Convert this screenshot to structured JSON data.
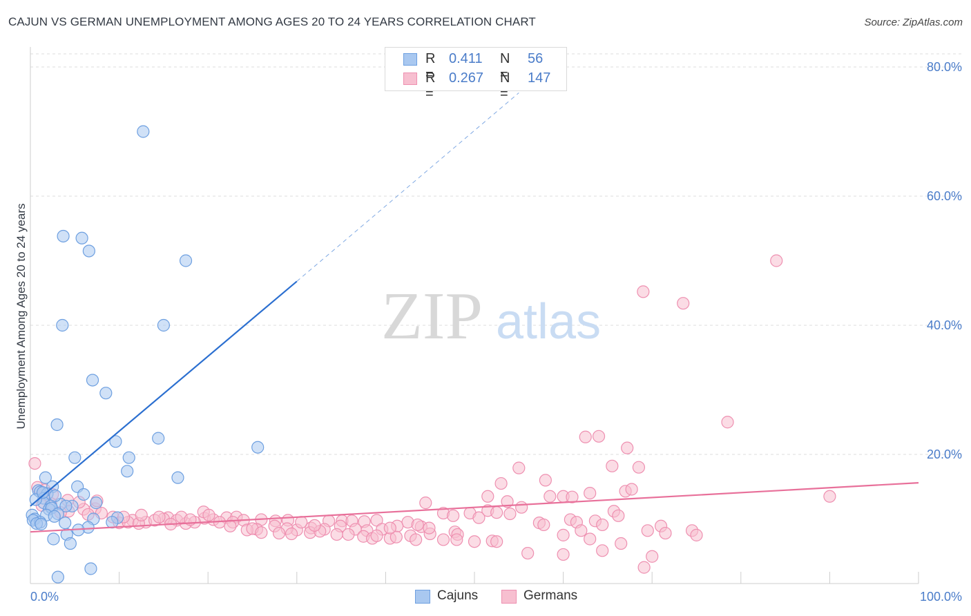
{
  "title": "CAJUN VS GERMAN UNEMPLOYMENT AMONG AGES 20 TO 24 YEARS CORRELATION CHART",
  "source": "Source: ZipAtlas.com",
  "watermark": {
    "zip": "ZIP",
    "atlas": "atlas"
  },
  "colors": {
    "cajun_fill": "#a9c8f0",
    "cajun_stroke": "#6d9fe0",
    "cajun_line": "#2b6fd0",
    "german_fill": "#f7bfd0",
    "german_stroke": "#ee8fb0",
    "german_line": "#e8709a",
    "tick_text": "#4a7cc9",
    "grid": "#dddddd"
  },
  "legend_top": [
    {
      "r_label": "R =",
      "r_value": "0.411",
      "n_label": "N =",
      "n_value": "56"
    },
    {
      "r_label": "R =",
      "r_value": "0.267",
      "n_label": "N =",
      "n_value": "147"
    }
  ],
  "legend_bottom": [
    "Cajuns",
    "Germans"
  ],
  "chart_data": {
    "type": "scatter",
    "title": "CAJUN VS GERMAN UNEMPLOYMENT AMONG AGES 20 TO 24 YEARS CORRELATION CHART",
    "xlabel": "",
    "ylabel": "Unemployment Among Ages 20 to 24 years",
    "xlim": [
      0,
      100
    ],
    "ylim": [
      0,
      82
    ],
    "x_tick_labels": [
      "0.0%",
      "100.0%"
    ],
    "y_ticks": [
      20,
      40,
      60,
      80
    ],
    "y_tick_labels": [
      "20.0%",
      "40.0%",
      "60.0%",
      "80.0%"
    ],
    "grid": true,
    "legend_position": "top-center",
    "series": [
      {
        "name": "Cajuns",
        "R": 0.411,
        "N": 56,
        "trend": {
          "x": [
            0,
            30
          ],
          "y": [
            12,
            46.8
          ],
          "dashed_to": [
            55,
            76
          ]
        },
        "points": [
          [
            12.7,
            70
          ],
          [
            3.7,
            53.8
          ],
          [
            5.8,
            53.5
          ],
          [
            6.6,
            51.5
          ],
          [
            17.5,
            50
          ],
          [
            3.6,
            40
          ],
          [
            15,
            40
          ],
          [
            7,
            31.5
          ],
          [
            8.5,
            29.5
          ],
          [
            3,
            24.6
          ],
          [
            14.4,
            22.5
          ],
          [
            9.6,
            22
          ],
          [
            25.6,
            21.1
          ],
          [
            5,
            19.5
          ],
          [
            11.1,
            19.5
          ],
          [
            10.9,
            17.4
          ],
          [
            16.6,
            16.4
          ],
          [
            1.7,
            16.4
          ],
          [
            2.5,
            15
          ],
          [
            5.3,
            15
          ],
          [
            0.9,
            14.4
          ],
          [
            1.1,
            14.2
          ],
          [
            1.9,
            13.9
          ],
          [
            6,
            13.8
          ],
          [
            1.5,
            13.2
          ],
          [
            7.4,
            12.5
          ],
          [
            1.5,
            12.5
          ],
          [
            3.4,
            12.3
          ],
          [
            4.7,
            12
          ],
          [
            4,
            12
          ],
          [
            2.3,
            12
          ],
          [
            2.1,
            11.5
          ],
          [
            2.4,
            11.7
          ],
          [
            3.1,
            10.8
          ],
          [
            1.8,
            10.6
          ],
          [
            2.7,
            10.4
          ],
          [
            0.2,
            10.6
          ],
          [
            7.1,
            10
          ],
          [
            9.8,
            10.2
          ],
          [
            0.5,
            10
          ],
          [
            0.3,
            9.8
          ],
          [
            1.1,
            9.5
          ],
          [
            0.7,
            9.3
          ],
          [
            3.9,
            9.4
          ],
          [
            1.2,
            9.2
          ],
          [
            6.5,
            8.7
          ],
          [
            5.4,
            8.3
          ],
          [
            9.2,
            9.5
          ],
          [
            4.1,
            7.6
          ],
          [
            2.6,
            6.9
          ],
          [
            4.5,
            6.2
          ],
          [
            6.8,
            2.3
          ],
          [
            3.1,
            1
          ],
          [
            0.6,
            13
          ],
          [
            2.8,
            13.6
          ],
          [
            1.4,
            14.1
          ]
        ]
      },
      {
        "name": "Germans",
        "R": 0.267,
        "N": 147,
        "trend": {
          "x": [
            0,
            100
          ],
          "y": [
            8,
            15.6
          ]
        },
        "points": [
          [
            84,
            50
          ],
          [
            69,
            45.2
          ],
          [
            73.5,
            43.4
          ],
          [
            78.5,
            25
          ],
          [
            64,
            22.8
          ],
          [
            62.5,
            22.7
          ],
          [
            67.2,
            21
          ],
          [
            0.5,
            18.6
          ],
          [
            55,
            17.9
          ],
          [
            65.5,
            18.2
          ],
          [
            68.5,
            18
          ],
          [
            58,
            16
          ],
          [
            53,
            15.5
          ],
          [
            67,
            14.3
          ],
          [
            67.7,
            14.6
          ],
          [
            63,
            14
          ],
          [
            58.5,
            13.5
          ],
          [
            60,
            13.5
          ],
          [
            51.5,
            13.5
          ],
          [
            61,
            13.4
          ],
          [
            90,
            13.5
          ],
          [
            0.8,
            14.9
          ],
          [
            1.6,
            14.5
          ],
          [
            2.5,
            13.8
          ],
          [
            4.2,
            12.9
          ],
          [
            2.3,
            12.4
          ],
          [
            1.3,
            12.1
          ],
          [
            53.7,
            12.7
          ],
          [
            55.3,
            11.8
          ],
          [
            51.5,
            11.3
          ],
          [
            44.5,
            12.5
          ],
          [
            65.7,
            11.2
          ],
          [
            66.2,
            10.5
          ],
          [
            46.5,
            10.9
          ],
          [
            49.5,
            10.9
          ],
          [
            52.5,
            11
          ],
          [
            54,
            10.8
          ],
          [
            47.6,
            10.5
          ],
          [
            50.5,
            10.2
          ],
          [
            60.8,
            9.9
          ],
          [
            61.5,
            9.5
          ],
          [
            63.6,
            9.7
          ],
          [
            64.4,
            9.1
          ],
          [
            57.3,
            9.4
          ],
          [
            57.8,
            9.1
          ],
          [
            71,
            8.9
          ],
          [
            69.5,
            8.2
          ],
          [
            74.5,
            8.2
          ],
          [
            62,
            8.2
          ],
          [
            47.8,
            8
          ],
          [
            44,
            8.8
          ],
          [
            45,
            7.7
          ],
          [
            48.1,
            7.6
          ],
          [
            60,
            7.5
          ],
          [
            46.5,
            6.8
          ],
          [
            52,
            6.6
          ],
          [
            63,
            6.9
          ],
          [
            7.3,
            11.6
          ],
          [
            6,
            11.5
          ],
          [
            8,
            10.9
          ],
          [
            9.3,
            10.3
          ],
          [
            11.5,
            9.8
          ],
          [
            15.5,
            10.2
          ],
          [
            19.6,
            10.1
          ],
          [
            20.6,
            9.9
          ],
          [
            22.1,
            10.2
          ],
          [
            23.2,
            10.3
          ],
          [
            24,
            9.8
          ],
          [
            29,
            9.8
          ],
          [
            26,
            9.9
          ],
          [
            27.6,
            9.7
          ],
          [
            33.6,
            9.7
          ],
          [
            35.1,
            9.7
          ],
          [
            36.2,
            9.7
          ],
          [
            37.6,
            9.6
          ],
          [
            39,
            9.8
          ],
          [
            42.5,
            9.5
          ],
          [
            44.9,
            8.6
          ],
          [
            43.6,
            9.1
          ],
          [
            41.3,
            8.9
          ],
          [
            39.6,
            8.4
          ],
          [
            37.9,
            8.2
          ],
          [
            36.6,
            8.4
          ],
          [
            34.9,
            8.9
          ],
          [
            33.1,
            8.4
          ],
          [
            31.6,
            8.6
          ],
          [
            30,
            8.3
          ],
          [
            28.9,
            8.5
          ],
          [
            27.5,
            8.9
          ],
          [
            25.5,
            8.4
          ],
          [
            24.4,
            8.3
          ],
          [
            25,
            8.5
          ],
          [
            26,
            7.9
          ],
          [
            28,
            7.8
          ],
          [
            29.4,
            7.7
          ],
          [
            31.5,
            7.9
          ],
          [
            32.6,
            8.1
          ],
          [
            34.5,
            7.6
          ],
          [
            35.8,
            7.6
          ],
          [
            37.5,
            7.3
          ],
          [
            38.5,
            7
          ],
          [
            39,
            7.4
          ],
          [
            40.5,
            7
          ],
          [
            41.2,
            7.2
          ],
          [
            42.8,
            7.4
          ],
          [
            43.4,
            6.8
          ],
          [
            48,
            6.8
          ],
          [
            50,
            6.5
          ],
          [
            52.5,
            6.5
          ],
          [
            56,
            4.7
          ],
          [
            60,
            4.5
          ],
          [
            64.4,
            5.1
          ],
          [
            70,
            4.2
          ],
          [
            69.1,
            2.5
          ],
          [
            15,
            10
          ],
          [
            13,
            9.5
          ],
          [
            14,
            9.8
          ],
          [
            16.5,
            9.8
          ],
          [
            17.5,
            9.3
          ],
          [
            18.5,
            9.5
          ],
          [
            21.3,
            9.5
          ],
          [
            22.8,
            9.5
          ],
          [
            10,
            9.4
          ],
          [
            11,
            9.5
          ],
          [
            12.2,
            9.3
          ],
          [
            10.5,
            10.3
          ],
          [
            12.5,
            10.6
          ],
          [
            14.5,
            10.3
          ],
          [
            17,
            10.3
          ],
          [
            18,
            9.9
          ],
          [
            6.5,
            10.7
          ],
          [
            5.5,
            12.6
          ],
          [
            4.3,
            11.2
          ],
          [
            3.4,
            11
          ],
          [
            7.5,
            12.8
          ],
          [
            19.5,
            11.1
          ],
          [
            20.1,
            10.6
          ],
          [
            15.8,
            9.2
          ],
          [
            30.5,
            9.5
          ],
          [
            32,
            9
          ],
          [
            22.5,
            8.9
          ],
          [
            40.5,
            8.6
          ],
          [
            71.5,
            7.8
          ],
          [
            75,
            7.5
          ],
          [
            66.5,
            6.2
          ]
        ]
      }
    ]
  }
}
